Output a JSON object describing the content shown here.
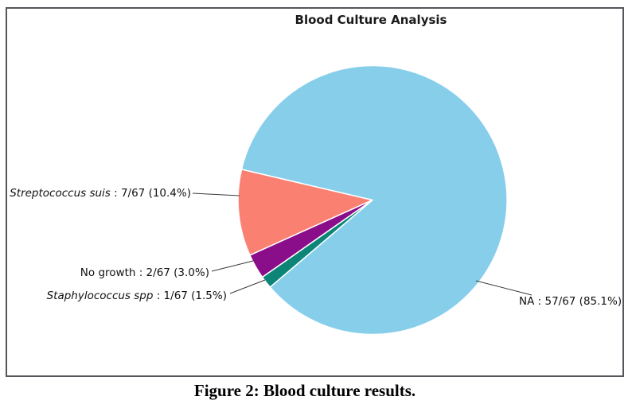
{
  "figure": {
    "caption": "Figure 2: Blood culture results."
  },
  "chart_data": {
    "type": "pie",
    "title": "Blood Culture Analysis",
    "total": 67,
    "start_angle_deg": 166.8,
    "direction": "counterclockwise",
    "legend": "none",
    "segments": [
      {
        "id": "streptococcus-suis",
        "name": "Streptococcus suis",
        "suffix": " : 7/67 (10.4%)",
        "label": "Streptococcus suis : 7/67 (10.4%)",
        "count": 7,
        "percent": 10.4,
        "italic": true,
        "color": "#fa8072"
      },
      {
        "id": "no-growth",
        "name": "No growth",
        "suffix": " : 2/67 (3.0%)",
        "label": "No growth : 2/67 (3.0%)",
        "count": 2,
        "percent": 3.0,
        "italic": false,
        "color": "#8a0d8a"
      },
      {
        "id": "staphylococcus-spp",
        "name": "Staphylococcus spp",
        "suffix": " : 1/67 (1.5%)",
        "label": "Staphylococcus spp : 1/67 (1.5%)",
        "count": 1,
        "percent": 1.5,
        "italic": true,
        "color": "#0c8577"
      },
      {
        "id": "na",
        "name": "NA",
        "suffix": " : 57/67 (85.1%)",
        "label": "NA : 57/67 (85.1%)",
        "count": 57,
        "percent": 85.1,
        "italic": false,
        "color": "#87ceeb"
      }
    ]
  }
}
